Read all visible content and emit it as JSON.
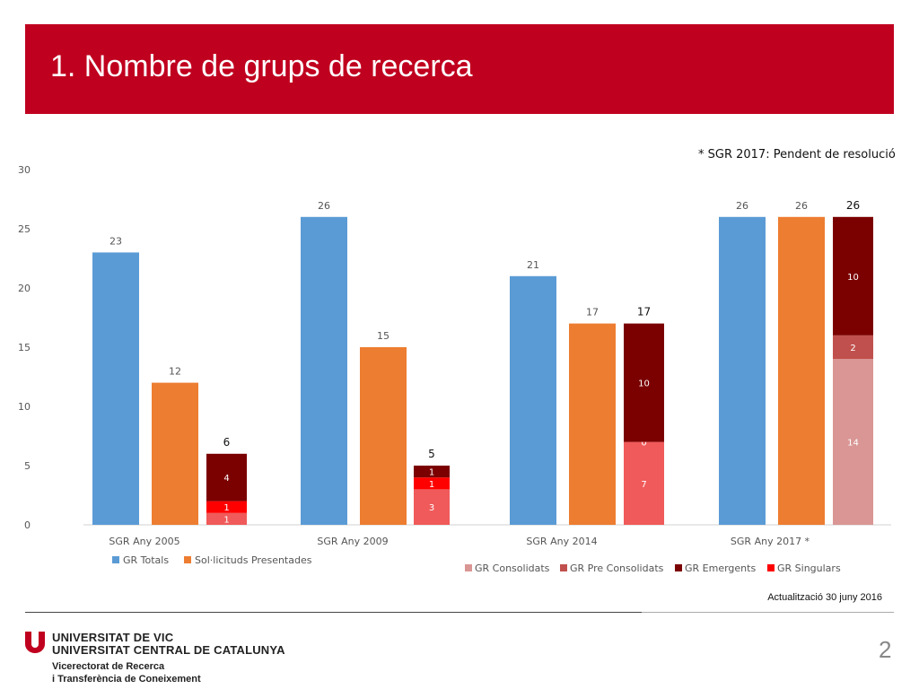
{
  "header": {
    "title": "1. Nombre de grups de recerca"
  },
  "note": "* SGR 2017: Pendent de resolució",
  "footer": {
    "update": "Actualització 30 juny 2016",
    "university_line1": "UNIVERSITAT DE VIC",
    "university_line2": "UNIVERSITAT CENTRAL DE CATALUNYA",
    "vice_line1": "Vicerectorat de Recerca",
    "vice_line2": "i Transferència de Coneixement",
    "page_number": "2"
  },
  "colors": {
    "banner": "#c0001f",
    "totals": "#5b9bd5",
    "presented": "#ed7d31",
    "consolidats": "#d99694",
    "pre_consolidats": "#c0504d",
    "emergents": "#7b0000",
    "singulars": "#ff0000",
    "older_segment": "#f05a5a"
  },
  "chart_data": {
    "type": "bar",
    "categories": [
      "SGR Any 2005",
      "SGR Any 2009",
      "SGR Any 2014",
      "SGR Any 2017 *"
    ],
    "ylim": [
      0,
      30
    ],
    "yticks": [
      0,
      5,
      10,
      15,
      20,
      25,
      30
    ],
    "series": [
      {
        "name": "GR Totals",
        "values": [
          23,
          26,
          21,
          26
        ]
      },
      {
        "name": "Sol·licituds Presentades",
        "values": [
          12,
          15,
          17,
          26
        ]
      }
    ],
    "stacked_totals": [
      6,
      5,
      17,
      26
    ],
    "stacked": [
      {
        "category": "SGR Any 2005",
        "segments": [
          {
            "value": 1,
            "label": "1",
            "color": "#f05a5a"
          },
          {
            "value": 1,
            "label": "1",
            "color": "#ff0000"
          },
          {
            "value": 4,
            "label": "4",
            "color": "#7b0000"
          }
        ]
      },
      {
        "category": "SGR Any 2009",
        "segments": [
          {
            "value": 3,
            "label": "3",
            "color": "#f05a5a"
          },
          {
            "value": 1,
            "label": "1",
            "color": "#ff0000"
          },
          {
            "value": 1,
            "label": "1",
            "color": "#7b0000"
          }
        ]
      },
      {
        "category": "SGR Any 2014",
        "segments": [
          {
            "value": 7,
            "label": "7",
            "color": "#f05a5a"
          },
          {
            "value": 0,
            "label": "0",
            "color": "#c0504d"
          },
          {
            "value": 10,
            "label": "10",
            "color": "#7b0000"
          }
        ]
      },
      {
        "category": "SGR Any 2017 *",
        "segments": [
          {
            "value": 14,
            "label": "14",
            "color": "#d99694"
          },
          {
            "value": 2,
            "label": "2",
            "color": "#c0504d"
          },
          {
            "value": 10,
            "label": "10",
            "color": "#7b0000"
          }
        ]
      }
    ],
    "legend_bottom": [
      "GR Consolidats",
      "GR Pre Consolidats",
      "GR Emergents",
      "GR Singulars"
    ],
    "grid": false
  }
}
